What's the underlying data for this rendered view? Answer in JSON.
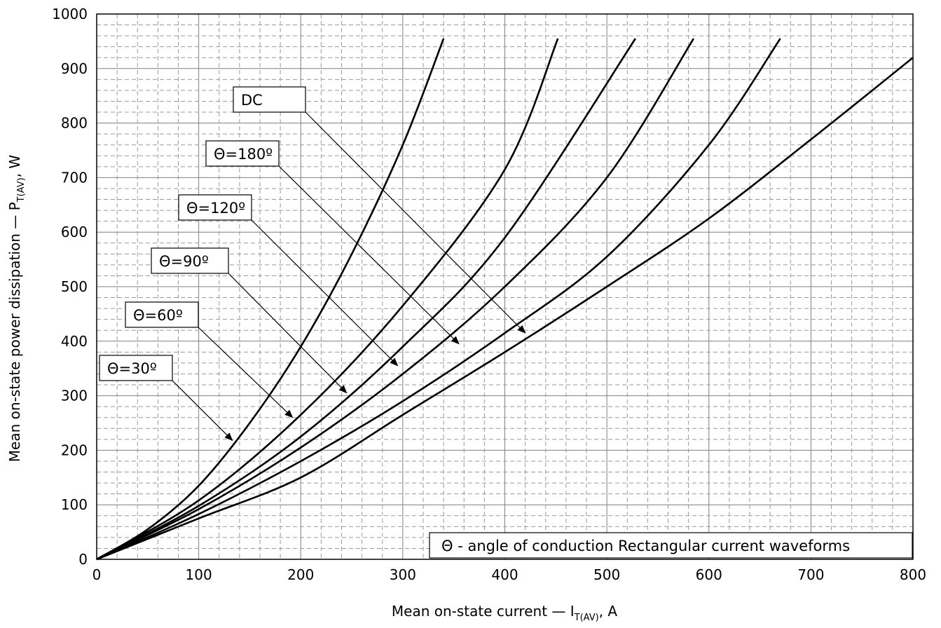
{
  "chart_data": {
    "type": "line",
    "xlabel_main": "Mean on-state current — I",
    "xlabel_sub": "T(AV)",
    "xlabel_tail": ", A",
    "ylabel_main": "Mean on-state power dissipation — P",
    "ylabel_sub": "T(AV)",
    "ylabel_tail": ", W",
    "xlim": [
      0,
      800
    ],
    "ylim": [
      0,
      1000
    ],
    "xticks": [
      "0",
      "100",
      "200",
      "300",
      "400",
      "500",
      "600",
      "700",
      "800"
    ],
    "yticks": [
      "0",
      "100",
      "200",
      "300",
      "400",
      "500",
      "600",
      "700",
      "800",
      "900",
      "1000"
    ],
    "grid": true,
    "note": "Θ - angle of conduction Rectangular current waveforms",
    "series": [
      {
        "name": "Θ=30º",
        "x": [
          0,
          50,
          100,
          150,
          200,
          250,
          300,
          340
        ],
        "y": [
          0,
          55,
          135,
          250,
          390,
          560,
          760,
          955
        ]
      },
      {
        "name": "Θ=60º",
        "x": [
          0,
          100,
          200,
          300,
          400,
          452
        ],
        "y": [
          0,
          108,
          265,
          465,
          715,
          955
        ]
      },
      {
        "name": "Θ=90º",
        "x": [
          0,
          100,
          200,
          300,
          400,
          528
        ],
        "y": [
          0,
          98,
          225,
          390,
          590,
          955
        ]
      },
      {
        "name": "Θ=120º",
        "x": [
          0,
          100,
          200,
          300,
          400,
          500,
          585
        ],
        "y": [
          0,
          92,
          205,
          340,
          500,
          700,
          955
        ]
      },
      {
        "name": "Θ=180º",
        "x": [
          0,
          100,
          200,
          300,
          400,
          500,
          600,
          670
        ],
        "y": [
          0,
          83,
          180,
          290,
          415,
          555,
          760,
          955
        ]
      },
      {
        "name": "DC",
        "x": [
          0,
          100,
          200,
          300,
          400,
          500,
          600,
          700,
          800
        ],
        "y": [
          0,
          75,
          150,
          265,
          380,
          500,
          625,
          770,
          920
        ]
      }
    ],
    "annotations": [
      {
        "text": "DC",
        "series": "DC",
        "target": [
          420,
          415
        ]
      },
      {
        "text": "Θ=180º",
        "series": "Θ=180º",
        "target": [
          355,
          395
        ]
      },
      {
        "text": "Θ=120º",
        "series": "Θ=120º",
        "target": [
          295,
          355
        ]
      },
      {
        "text": "Θ=90º",
        "series": "Θ=90º",
        "target": [
          245,
          305
        ]
      },
      {
        "text": "Θ=60º",
        "series": "Θ=60º",
        "target": [
          192,
          260
        ]
      },
      {
        "text": "Θ=30º",
        "series": "Θ=30º",
        "target": [
          133,
          218
        ]
      }
    ]
  }
}
